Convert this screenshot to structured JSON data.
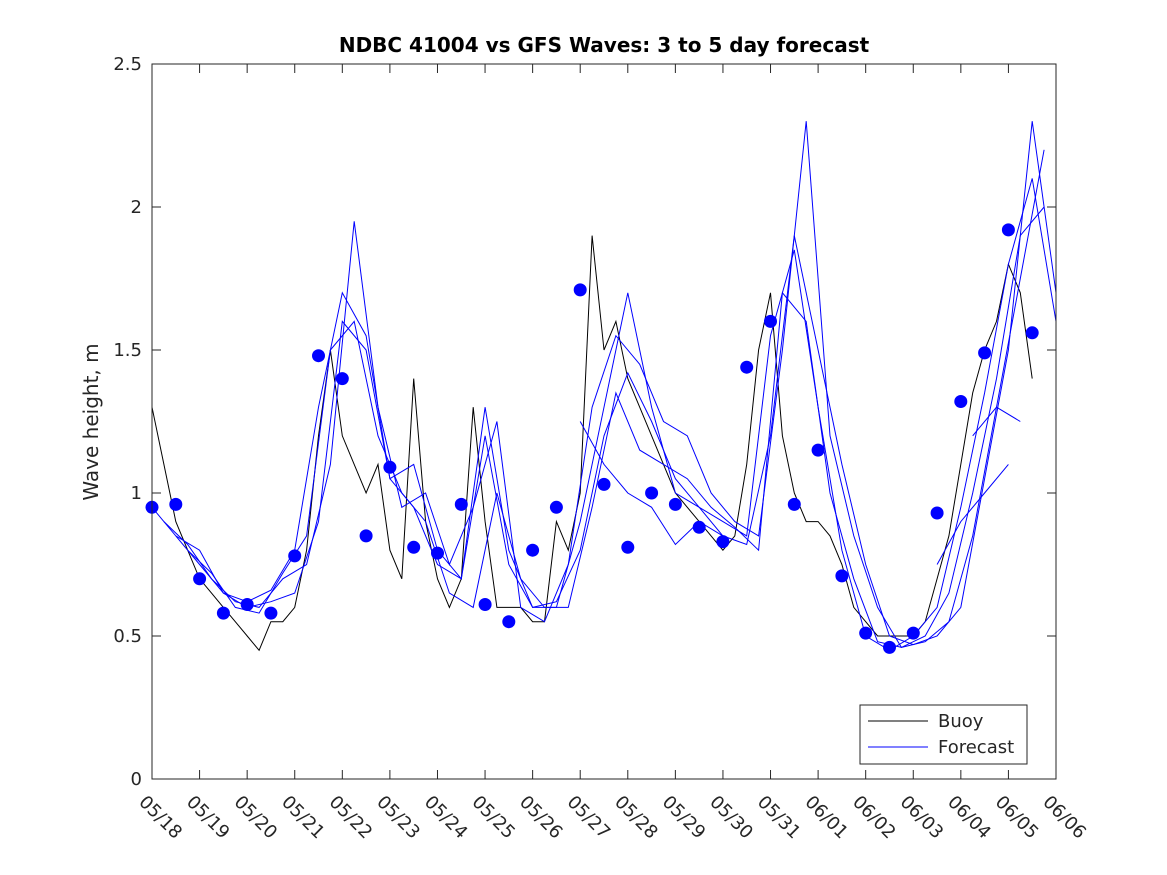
{
  "chart_data": {
    "type": "line",
    "title": "NDBC 41004 vs GFS Waves: 3 to 5 day forecast",
    "xlabel": "",
    "ylabel": "Wave height, m",
    "ylim": [
      0,
      2.5
    ],
    "yticks": [
      0,
      0.5,
      1,
      1.5,
      2,
      2.5
    ],
    "ytick_labels": [
      "0",
      "0.5",
      "1",
      "1.5",
      "2",
      "2.5"
    ],
    "xlim": [
      "2018-05-18",
      "2018-06-06"
    ],
    "xtick_labels": [
      "05/18",
      "05/19",
      "05/20",
      "05/21",
      "05/22",
      "05/23",
      "05/24",
      "05/25",
      "05/26",
      "05/27",
      "05/28",
      "05/29",
      "05/30",
      "05/31",
      "06/01",
      "06/02",
      "06/03",
      "06/04",
      "06/05",
      "06/06"
    ],
    "grid": false,
    "legend": {
      "position": "bottom-right",
      "entries": [
        {
          "label": "Buoy",
          "color": "#000000"
        },
        {
          "label": "Forecast",
          "color": "#0000ff"
        }
      ]
    },
    "colors": {
      "buoy": "#000000",
      "forecast": "#0000ff"
    },
    "series": [
      {
        "name": "Buoy",
        "kind": "line",
        "x": [
          "2018-05-18T00:00",
          "2018-05-18T06:00",
          "2018-05-18T12:00",
          "2018-05-18T18:00",
          "2018-05-19T00:00",
          "2018-05-19T06:00",
          "2018-05-19T12:00",
          "2018-05-19T18:00",
          "2018-05-20T00:00",
          "2018-05-20T06:00",
          "2018-05-20T12:00",
          "2018-05-20T18:00",
          "2018-05-21T00:00",
          "2018-05-21T06:00",
          "2018-05-21T12:00",
          "2018-05-21T18:00",
          "2018-05-22T00:00",
          "2018-05-22T06:00",
          "2018-05-22T12:00",
          "2018-05-22T18:00",
          "2018-05-23T00:00",
          "2018-05-23T06:00",
          "2018-05-23T12:00",
          "2018-05-23T18:00",
          "2018-05-24T00:00",
          "2018-05-24T06:00",
          "2018-05-24T12:00",
          "2018-05-24T18:00",
          "2018-05-25T00:00",
          "2018-05-25T06:00",
          "2018-05-25T12:00",
          "2018-05-25T18:00",
          "2018-05-26T00:00",
          "2018-05-26T06:00",
          "2018-05-26T12:00",
          "2018-05-26T18:00",
          "2018-05-27T00:00",
          "2018-05-27T06:00",
          "2018-05-27T12:00",
          "2018-05-27T18:00",
          "2018-05-28T00:00",
          "2018-05-28T06:00",
          "2018-05-28T12:00",
          "2018-05-28T18:00",
          "2018-05-29T00:00",
          "2018-05-29T06:00",
          "2018-05-29T12:00",
          "2018-05-29T18:00",
          "2018-05-30T00:00",
          "2018-05-30T06:00",
          "2018-05-30T12:00",
          "2018-05-30T18:00",
          "2018-05-31T00:00",
          "2018-05-31T06:00",
          "2018-05-31T12:00",
          "2018-05-31T18:00",
          "2018-06-01T00:00",
          "2018-06-01T06:00",
          "2018-06-01T12:00",
          "2018-06-01T18:00",
          "2018-06-02T00:00",
          "2018-06-02T06:00",
          "2018-06-02T12:00",
          "2018-06-02T18:00",
          "2018-06-03T00:00",
          "2018-06-03T06:00",
          "2018-06-03T12:00",
          "2018-06-03T18:00",
          "2018-06-04T00:00",
          "2018-06-04T06:00",
          "2018-06-04T12:00",
          "2018-06-04T18:00",
          "2018-06-05T00:00",
          "2018-06-05T06:00",
          "2018-06-05T12:00"
        ],
        "y": [
          1.3,
          1.1,
          0.9,
          0.8,
          0.7,
          0.65,
          0.6,
          0.55,
          0.5,
          0.45,
          0.55,
          0.55,
          0.6,
          0.8,
          1.2,
          1.5,
          1.2,
          1.1,
          1.0,
          1.1,
          0.8,
          0.7,
          1.4,
          0.9,
          0.7,
          0.6,
          0.7,
          1.3,
          0.9,
          0.6,
          0.6,
          0.6,
          0.55,
          0.55,
          0.9,
          0.8,
          1.0,
          1.9,
          1.5,
          1.6,
          1.4,
          1.3,
          1.2,
          1.1,
          1.0,
          0.95,
          0.9,
          0.85,
          0.8,
          0.85,
          1.1,
          1.5,
          1.7,
          1.2,
          1.0,
          0.9,
          0.9,
          0.85,
          0.75,
          0.6,
          0.55,
          0.5,
          0.5,
          0.5,
          0.5,
          0.55,
          0.7,
          0.85,
          1.1,
          1.35,
          1.5,
          1.6,
          1.8,
          1.7,
          1.4
        ]
      },
      {
        "name": "Forecast",
        "kind": "line",
        "x": [
          "2018-05-18T00:00",
          "2018-05-18T12:00",
          "2018-05-19T00:00",
          "2018-05-19T12:00",
          "2018-05-20T00:00",
          "2018-05-20T12:00",
          "2018-05-21T00:00",
          "2018-05-21T12:00",
          "2018-05-22T00:00",
          "2018-05-22T12:00",
          "2018-05-23T00:00",
          "2018-05-23T12:00",
          "2018-05-24T00:00",
          "2018-05-24T12:00",
          "2018-05-25T00:00",
          "2018-05-25T12:00",
          "2018-05-26T00:00",
          "2018-05-26T12:00",
          "2018-05-27T00:00",
          "2018-05-27T12:00",
          "2018-05-28T00:00",
          "2018-05-28T12:00",
          "2018-05-29T00:00",
          "2018-05-29T12:00",
          "2018-05-30T00:00",
          "2018-05-30T12:00",
          "2018-05-31T00:00",
          "2018-05-31T12:00",
          "2018-06-01T00:00",
          "2018-06-01T12:00",
          "2018-06-02T00:00",
          "2018-06-02T12:00",
          "2018-06-03T00:00",
          "2018-06-03T12:00",
          "2018-06-04T00:00",
          "2018-06-04T12:00",
          "2018-06-05T00:00",
          "2018-06-05T12:00",
          "2018-06-06T00:00"
        ],
        "y": [
          0.95,
          0.85,
          0.8,
          0.65,
          0.6,
          0.62,
          0.65,
          0.9,
          1.6,
          1.5,
          1.05,
          1.1,
          0.8,
          0.7,
          1.2,
          0.75,
          0.6,
          0.6,
          0.9,
          1.3,
          1.7,
          1.3,
          1.0,
          0.95,
          0.85,
          0.82,
          1.2,
          1.9,
          1.5,
          1.1,
          0.75,
          0.5,
          0.47,
          0.5,
          0.6,
          1.05,
          1.5,
          2.3,
          1.7
        ]
      },
      {
        "name": "Forecast",
        "kind": "line",
        "x": [
          "2018-05-18T06:00",
          "2018-05-18T18:00",
          "2018-05-19T06:00",
          "2018-05-19T18:00",
          "2018-05-20T06:00",
          "2018-05-20T18:00",
          "2018-05-21T06:00",
          "2018-05-21T18:00",
          "2018-05-22T06:00",
          "2018-05-22T18:00",
          "2018-05-23T06:00",
          "2018-05-23T18:00",
          "2018-05-24T06:00",
          "2018-05-24T18:00",
          "2018-05-25T06:00",
          "2018-05-25T18:00",
          "2018-05-26T06:00",
          "2018-05-26T18:00",
          "2018-05-27T06:00",
          "2018-05-27T18:00",
          "2018-05-28T06:00",
          "2018-05-28T18:00",
          "2018-05-29T06:00",
          "2018-05-29T18:00",
          "2018-05-30T06:00",
          "2018-05-30T18:00",
          "2018-05-31T06:00",
          "2018-05-31T18:00",
          "2018-06-01T06:00",
          "2018-06-01T18:00",
          "2018-06-02T06:00",
          "2018-06-02T18:00",
          "2018-06-03T06:00",
          "2018-06-03T18:00",
          "2018-06-04T06:00",
          "2018-06-04T18:00",
          "2018-06-05T06:00",
          "2018-06-05T18:00"
        ],
        "y": [
          0.9,
          0.82,
          0.7,
          0.62,
          0.6,
          0.7,
          0.75,
          1.1,
          1.95,
          1.3,
          0.95,
          1.0,
          0.75,
          0.95,
          1.25,
          0.6,
          0.55,
          0.75,
          1.3,
          1.55,
          1.45,
          1.25,
          1.2,
          1.0,
          0.9,
          0.85,
          1.5,
          2.3,
          1.2,
          0.85,
          0.6,
          0.46,
          0.48,
          0.55,
          0.85,
          1.3,
          1.75,
          2.2
        ]
      },
      {
        "name": "Forecast",
        "kind": "line",
        "x": [
          "2018-05-18T12:00",
          "2018-05-19T00:00",
          "2018-05-19T12:00",
          "2018-05-20T00:00",
          "2018-05-20T12:00",
          "2018-05-21T00:00",
          "2018-05-21T12:00",
          "2018-05-22T00:00",
          "2018-05-22T12:00",
          "2018-05-23T00:00",
          "2018-05-23T12:00",
          "2018-05-24T00:00",
          "2018-05-24T12:00",
          "2018-05-25T00:00",
          "2018-05-25T12:00",
          "2018-05-26T00:00",
          "2018-05-26T12:00",
          "2018-05-27T00:00",
          "2018-05-27T12:00",
          "2018-05-28T00:00",
          "2018-05-28T12:00",
          "2018-05-29T00:00",
          "2018-05-29T12:00",
          "2018-05-30T00:00",
          "2018-05-30T12:00",
          "2018-05-31T00:00",
          "2018-05-31T12:00",
          "2018-06-01T00:00",
          "2018-06-01T12:00",
          "2018-06-02T00:00",
          "2018-06-02T12:00",
          "2018-06-03T00:00",
          "2018-06-03T12:00",
          "2018-06-04T00:00",
          "2018-06-04T12:00",
          "2018-06-05T00:00",
          "2018-06-05T12:00",
          "2018-06-06T00:00"
        ],
        "y": [
          0.85,
          0.75,
          0.65,
          0.62,
          0.66,
          0.8,
          1.3,
          1.7,
          1.55,
          1.05,
          0.95,
          0.75,
          0.7,
          1.3,
          0.8,
          0.6,
          0.62,
          0.8,
          1.2,
          1.42,
          1.25,
          1.05,
          0.95,
          0.9,
          0.85,
          1.55,
          1.85,
          1.3,
          0.8,
          0.5,
          0.45,
          0.5,
          0.6,
          0.95,
          1.35,
          1.8,
          2.1,
          1.6
        ]
      },
      {
        "name": "Forecast",
        "kind": "line",
        "x": [
          "2018-05-18T18:00",
          "2018-05-19T06:00",
          "2018-05-19T18:00",
          "2018-05-20T06:00",
          "2018-05-20T18:00",
          "2018-05-21T06:00",
          "2018-05-21T18:00",
          "2018-05-22T06:00",
          "2018-05-22T18:00",
          "2018-05-23T06:00",
          "2018-05-23T18:00",
          "2018-05-24T06:00",
          "2018-05-24T18:00",
          "2018-05-25T06:00",
          "2018-05-25T18:00",
          "2018-05-26T06:00",
          "2018-05-26T18:00",
          "2018-05-27T06:00",
          "2018-05-27T18:00",
          "2018-05-28T06:00",
          "2018-05-28T18:00",
          "2018-05-29T06:00",
          "2018-05-29T18:00",
          "2018-05-30T06:00",
          "2018-05-30T18:00",
          "2018-05-31T06:00",
          "2018-05-31T18:00",
          "2018-06-01T06:00",
          "2018-06-01T18:00",
          "2018-06-02T06:00",
          "2018-06-02T18:00",
          "2018-06-03T06:00",
          "2018-06-03T18:00",
          "2018-06-04T06:00",
          "2018-06-04T18:00",
          "2018-06-05T06:00",
          "2018-06-05T18:00"
        ],
        "y": [
          0.8,
          0.72,
          0.6,
          0.58,
          0.72,
          0.85,
          1.5,
          1.6,
          1.2,
          1.0,
          0.9,
          0.65,
          0.6,
          1.0,
          0.7,
          0.6,
          0.6,
          0.95,
          1.35,
          1.15,
          1.1,
          1.05,
          0.95,
          0.88,
          0.8,
          1.7,
          1.6,
          1.0,
          0.7,
          0.48,
          0.46,
          0.5,
          0.65,
          1.0,
          1.4,
          1.9,
          2.0
        ]
      },
      {
        "name": "Forecast",
        "kind": "line",
        "x": [
          "2018-05-27T00:00",
          "2018-05-27T12:00",
          "2018-05-28T00:00",
          "2018-05-28T12:00",
          "2018-05-29T00:00",
          "2018-05-29T12:00",
          "2018-05-30T00:00"
        ],
        "y": [
          1.25,
          1.1,
          1.0,
          0.95,
          0.82,
          0.9,
          0.85
        ]
      },
      {
        "name": "Forecast",
        "kind": "line",
        "x": [
          "2018-06-03T12:00",
          "2018-06-04T00:00",
          "2018-06-04T12:00",
          "2018-06-05T00:00"
        ],
        "y": [
          0.75,
          0.9,
          1.0,
          1.1
        ]
      },
      {
        "name": "Forecast",
        "kind": "line",
        "x": [
          "2018-06-04T06:00",
          "2018-06-04T18:00",
          "2018-06-05T06:00"
        ],
        "y": [
          1.2,
          1.3,
          1.25
        ]
      },
      {
        "name": "Forecast",
        "kind": "scatter",
        "x": [
          "2018-05-18T00:00",
          "2018-05-18T12:00",
          "2018-05-19T00:00",
          "2018-05-19T12:00",
          "2018-05-20T00:00",
          "2018-05-20T12:00",
          "2018-05-21T00:00",
          "2018-05-21T12:00",
          "2018-05-22T00:00",
          "2018-05-22T12:00",
          "2018-05-23T00:00",
          "2018-05-23T12:00",
          "2018-05-24T00:00",
          "2018-05-24T12:00",
          "2018-05-25T00:00",
          "2018-05-25T12:00",
          "2018-05-26T00:00",
          "2018-05-26T12:00",
          "2018-05-27T00:00",
          "2018-05-27T12:00",
          "2018-05-28T00:00",
          "2018-05-28T12:00",
          "2018-05-29T00:00",
          "2018-05-29T12:00",
          "2018-05-30T00:00",
          "2018-05-30T12:00",
          "2018-05-31T00:00",
          "2018-05-31T12:00",
          "2018-06-01T00:00",
          "2018-06-01T12:00",
          "2018-06-02T00:00",
          "2018-06-02T12:00",
          "2018-06-03T00:00",
          "2018-06-03T12:00",
          "2018-06-04T00:00",
          "2018-06-04T12:00",
          "2018-06-05T00:00",
          "2018-06-05T12:00"
        ],
        "y": [
          0.95,
          0.96,
          0.7,
          0.58,
          0.61,
          0.58,
          0.78,
          1.48,
          1.4,
          0.85,
          1.09,
          0.81,
          0.79,
          0.96,
          0.61,
          0.55,
          0.8,
          0.95,
          1.71,
          1.03,
          0.81,
          1.0,
          0.96,
          0.88,
          0.83,
          1.44,
          1.6,
          0.96,
          1.15,
          0.71,
          0.51,
          0.46,
          0.51,
          0.93,
          1.32,
          1.49,
          1.92,
          1.56
        ]
      }
    ]
  }
}
